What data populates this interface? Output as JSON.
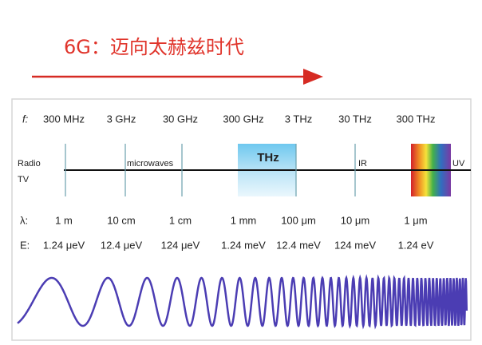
{
  "title": "6G：迈向太赫兹时代",
  "frequency": {
    "label": "f:",
    "values": [
      "300 MHz",
      "3 GHz",
      "30 GHz",
      "300 GHz",
      "3 THz",
      "30 THz",
      "300 THz"
    ]
  },
  "bands": {
    "radio": "Radio",
    "tv": "TV",
    "microwaves": "microwaves",
    "thz": "THz",
    "ir": "IR",
    "uv": "UV"
  },
  "wavelength": {
    "label": "λ:",
    "values": [
      "1 m",
      "10 cm",
      "1 cm",
      "1 mm",
      "100 μm",
      "10 μm",
      "1 μm"
    ]
  },
  "energy": {
    "label": "E:",
    "values": [
      "1.24 μeV",
      "12.4 μeV",
      "124 μeV",
      "1.24 meV",
      "12.4 meV",
      "124 meV",
      "1.24 eV"
    ]
  }
}
